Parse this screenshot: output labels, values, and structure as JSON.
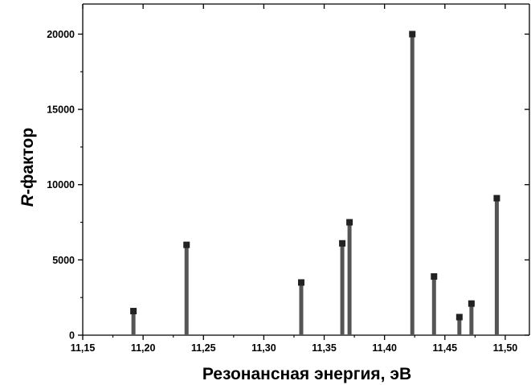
{
  "chart_data": {
    "type": "bar",
    "title": "",
    "xlabel": "Резонансная энергия, эВ",
    "ylabel_prefix": "R",
    "ylabel_suffix": "-фактор",
    "xlim": [
      11.15,
      11.52
    ],
    "ylim": [
      0,
      22000
    ],
    "x_ticks": [
      11.15,
      11.2,
      11.25,
      11.3,
      11.35,
      11.4,
      11.45,
      11.5
    ],
    "x_tick_labels": [
      "11,15",
      "11,20",
      "11,25",
      "11,30",
      "11,35",
      "11,40",
      "11,45",
      "11,50"
    ],
    "y_ticks": [
      0,
      5000,
      10000,
      15000,
      20000
    ],
    "y_tick_labels": [
      "0",
      "5000",
      "10000",
      "15000",
      "20000"
    ],
    "grid": false,
    "legend": "none",
    "series": [
      {
        "x": [
          11.192,
          11.236,
          11.331,
          11.365,
          11.371,
          11.423,
          11.441,
          11.462,
          11.472,
          11.493
        ],
        "values": [
          1600,
          6000,
          3500,
          6100,
          7500,
          20000,
          3900,
          1200,
          2100,
          9100
        ]
      }
    ],
    "colors": {
      "bar": "#555555",
      "marker": "#222222",
      "axis": "#000000"
    }
  }
}
